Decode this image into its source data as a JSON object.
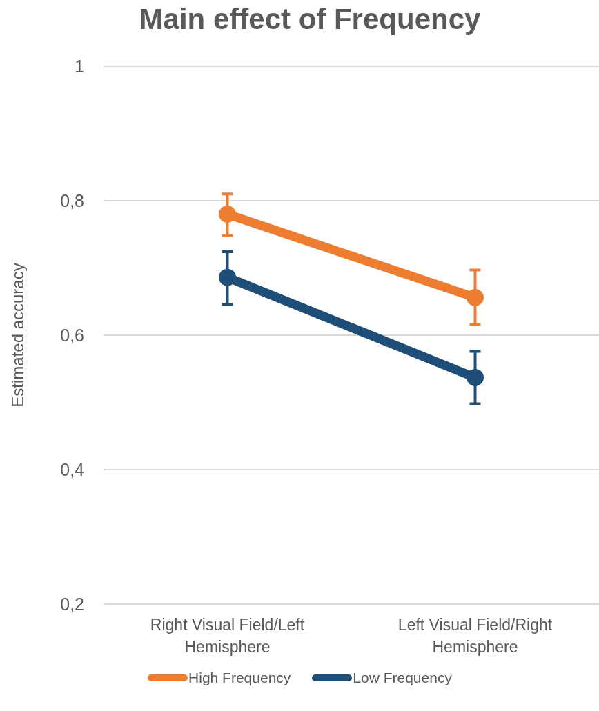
{
  "chart_data": {
    "type": "line",
    "title": "Main effect of Frequency",
    "ylabel": "Estimated accuracy",
    "categories": [
      "Right Visual Field/Left Hemisphere",
      "Left Visual Field/Right Hemisphere"
    ],
    "series": [
      {
        "name": "High Frequency",
        "color": "#ed7d31",
        "values": [
          0.78,
          0.656
        ],
        "errors": [
          [
            0.748,
            0.81
          ],
          [
            0.616,
            0.697
          ]
        ]
      },
      {
        "name": "Low Frequency",
        "color": "#1f4e79",
        "values": [
          0.686,
          0.537
        ],
        "errors": [
          [
            0.646,
            0.724
          ],
          [
            0.498,
            0.576
          ]
        ]
      }
    ],
    "ylim": [
      0.2,
      1
    ],
    "yticks": [
      {
        "value": 0.2,
        "label": "0,2"
      },
      {
        "value": 0.4,
        "label": "0,4"
      },
      {
        "value": 0.6,
        "label": "0,6"
      },
      {
        "value": 0.8,
        "label": "0,8"
      },
      1
    ],
    "grid": "y",
    "legend": "bottom",
    "marker": "circle",
    "line_style": "solid"
  }
}
